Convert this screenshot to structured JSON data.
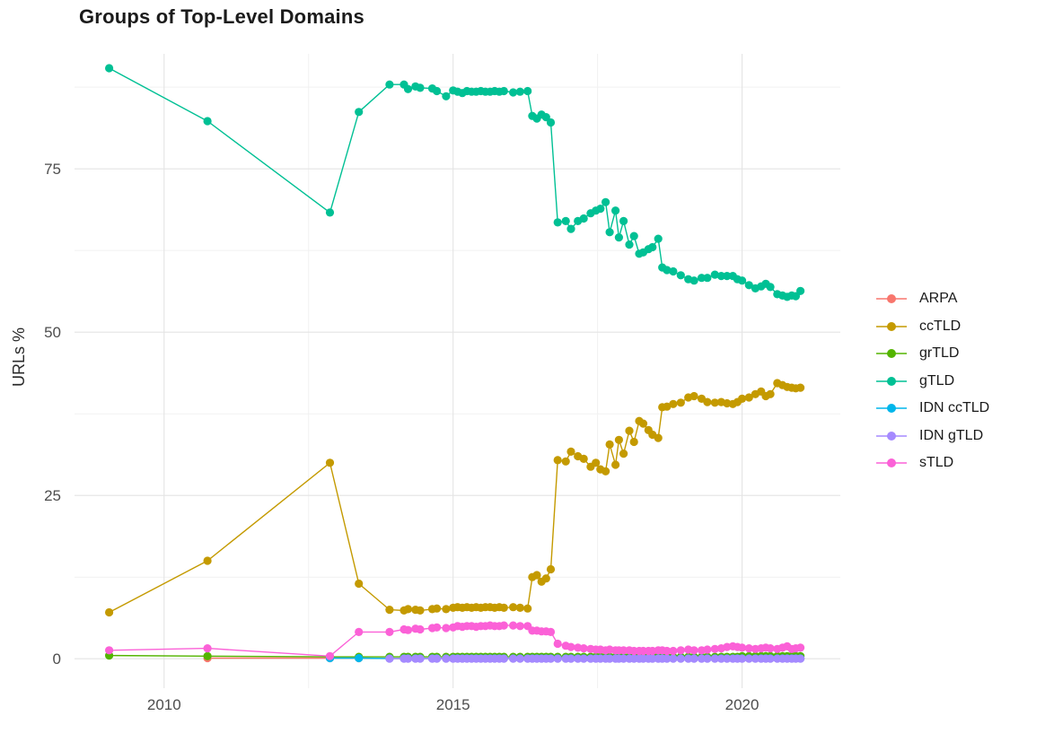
{
  "title": "Groups of Top-Level Domains",
  "y_axis": {
    "title": "URLs %"
  },
  "x_axis": {
    "tick_labels": [
      "2010",
      "2015",
      "2020"
    ]
  },
  "legend": {
    "position": "right",
    "entries": [
      {
        "label": "ARPA",
        "color": "#F8766D"
      },
      {
        "label": "ccTLD",
        "color": "#C49A00"
      },
      {
        "label": "grTLD",
        "color": "#53B400"
      },
      {
        "label": "gTLD",
        "color": "#00C094"
      },
      {
        "label": "IDN ccTLD",
        "color": "#00B6EB"
      },
      {
        "label": "IDN gTLD",
        "color": "#A58AFF"
      },
      {
        "label": "sTLD",
        "color": "#FB61D7"
      }
    ]
  },
  "chart_data": {
    "type": "line",
    "title": "Groups of Top-Level Domains",
    "xlabel": "",
    "ylabel": "URLs %",
    "x_domain": [
      2008.45,
      2021.7
    ],
    "y_domain": [
      -4.5,
      92.6
    ],
    "x_ticks": [
      2010,
      2015,
      2020
    ],
    "x_minor": [
      2012.5,
      2017.5
    ],
    "y_ticks": [
      0,
      25,
      50,
      75
    ],
    "y_minor": [
      12.5,
      37.5,
      62.5,
      87.5
    ],
    "grid": true,
    "legend_position": "right",
    "x": [
      2009.05,
      2010.75,
      2012.87,
      2013.37,
      2013.9,
      2014.15,
      2014.22,
      2014.35,
      2014.43,
      2014.64,
      2014.72,
      2014.88,
      2015.0,
      2015.08,
      2015.16,
      2015.24,
      2015.32,
      2015.4,
      2015.48,
      2015.56,
      2015.64,
      2015.72,
      2015.8,
      2015.88,
      2016.04,
      2016.16,
      2016.29,
      2016.37,
      2016.45,
      2016.53,
      2016.61,
      2016.69,
      2016.81,
      2016.95,
      2017.04,
      2017.16,
      2017.26,
      2017.38,
      2017.47,
      2017.55,
      2017.64,
      2017.71,
      2017.81,
      2017.87,
      2017.95,
      2018.05,
      2018.13,
      2018.22,
      2018.29,
      2018.38,
      2018.45,
      2018.55,
      2018.62,
      2018.7,
      2018.81,
      2018.94,
      2019.07,
      2019.17,
      2019.3,
      2019.4,
      2019.53,
      2019.64,
      2019.74,
      2019.84,
      2019.92,
      2020.0,
      2020.12,
      2020.23,
      2020.33,
      2020.41,
      2020.49,
      2020.61,
      2020.7,
      2020.78,
      2020.86,
      2020.93,
      2021.01
    ],
    "series": [
      {
        "name": "ARPA",
        "color": "#F8766D",
        "values": [
          null,
          0.1,
          0.1,
          0.1,
          0.05,
          0.05,
          0.05,
          0.05,
          0.05,
          0.05,
          0.05,
          0.05,
          0.05,
          0.05,
          0.05,
          0.05,
          0.05,
          0.05,
          0.05,
          0.05,
          0.05,
          0.05,
          0.05,
          0.05,
          0.05,
          0.05,
          0.05,
          0.05,
          0.05,
          0.05,
          0.05,
          0.05,
          0.05,
          0.05,
          0.05,
          0.05,
          0.05,
          0.05,
          0.05,
          0.05,
          0.05,
          0.05,
          0.05,
          0.05,
          0.05,
          0.05,
          0.05,
          0.05,
          0.05,
          0.05,
          0.05,
          0.05,
          0.05,
          0.05,
          0.05,
          0.05,
          0.05,
          0.05,
          0.05,
          0.05,
          0.05,
          0.05,
          0.05,
          0.05,
          0.05,
          0.05,
          0.05,
          0.05,
          0.05,
          0.05,
          0.05,
          0.05,
          0.05,
          0.05,
          0.05,
          0.05,
          0.05
        ]
      },
      {
        "name": "ccTLD",
        "color": "#C49A00",
        "values": [
          7.1,
          15.0,
          30.0,
          11.5,
          7.5,
          7.4,
          7.6,
          7.5,
          7.4,
          7.6,
          7.7,
          7.6,
          7.8,
          7.9,
          7.8,
          7.9,
          7.8,
          7.9,
          7.8,
          7.9,
          7.9,
          7.8,
          7.9,
          7.8,
          7.9,
          7.8,
          7.7,
          12.5,
          12.8,
          11.8,
          12.3,
          13.7,
          30.4,
          30.2,
          31.7,
          31.0,
          30.6,
          29.4,
          30.0,
          29.0,
          28.7,
          32.8,
          29.7,
          33.5,
          31.4,
          34.9,
          33.2,
          36.4,
          36.0,
          35.0,
          34.3,
          33.8,
          38.5,
          38.6,
          39.0,
          39.2,
          40.0,
          40.2,
          39.8,
          39.3,
          39.2,
          39.3,
          39.1,
          39.0,
          39.3,
          39.8,
          40.0,
          40.5,
          40.9,
          40.2,
          40.5,
          42.2,
          41.9,
          41.6,
          41.5,
          41.4,
          41.5
        ]
      },
      {
        "name": "grTLD",
        "color": "#53B400",
        "values": [
          0.5,
          0.4,
          0.3,
          0.3,
          0.3,
          0.3,
          0.3,
          0.3,
          0.3,
          0.3,
          0.3,
          0.3,
          0.3,
          0.3,
          0.3,
          0.3,
          0.3,
          0.3,
          0.3,
          0.3,
          0.3,
          0.3,
          0.3,
          0.3,
          0.3,
          0.3,
          0.3,
          0.3,
          0.3,
          0.3,
          0.3,
          0.3,
          0.3,
          0.3,
          0.3,
          0.3,
          0.3,
          0.3,
          0.3,
          0.3,
          0.3,
          0.3,
          0.3,
          0.3,
          0.3,
          0.3,
          0.3,
          0.3,
          0.3,
          0.3,
          0.3,
          0.3,
          0.3,
          0.3,
          0.3,
          0.3,
          0.3,
          0.3,
          0.3,
          0.3,
          0.3,
          0.3,
          0.3,
          0.3,
          0.3,
          0.4,
          0.4,
          0.4,
          0.4,
          0.4,
          0.4,
          0.4,
          0.4,
          0.4,
          0.4,
          0.4,
          0.4
        ]
      },
      {
        "name": "gTLD",
        "color": "#00C094",
        "values": [
          90.4,
          82.3,
          68.3,
          83.7,
          87.9,
          87.9,
          87.2,
          87.6,
          87.4,
          87.3,
          86.9,
          86.1,
          87.0,
          86.8,
          86.6,
          86.9,
          86.8,
          86.8,
          86.9,
          86.8,
          86.8,
          86.9,
          86.8,
          86.9,
          86.7,
          86.8,
          86.9,
          83.1,
          82.7,
          83.3,
          82.9,
          82.1,
          66.8,
          67.0,
          65.8,
          67.0,
          67.4,
          68.2,
          68.6,
          68.9,
          69.9,
          65.3,
          68.6,
          64.5,
          67.0,
          63.4,
          64.7,
          62.0,
          62.2,
          62.7,
          63.0,
          64.3,
          59.9,
          59.5,
          59.3,
          58.7,
          58.1,
          57.9,
          58.3,
          58.3,
          58.8,
          58.6,
          58.6,
          58.6,
          58.1,
          57.9,
          57.2,
          56.7,
          57.0,
          57.4,
          56.9,
          55.8,
          55.6,
          55.4,
          55.6,
          55.5,
          56.3
        ]
      },
      {
        "name": "IDN ccTLD",
        "color": "#00B6EB",
        "values": [
          null,
          null,
          0.1,
          0.1,
          0.05,
          0.05,
          0.05,
          0.05,
          0.05,
          0.05,
          0.05,
          0.05,
          0.05,
          0.05,
          0.05,
          0.05,
          0.05,
          0.05,
          0.05,
          0.05,
          0.05,
          0.05,
          0.05,
          0.05,
          0.05,
          0.05,
          0.05,
          0.05,
          0.05,
          0.05,
          0.05,
          0.05,
          0.05,
          0.05,
          0.05,
          0.05,
          0.05,
          0.05,
          0.05,
          0.05,
          0.05,
          0.05,
          0.05,
          0.05,
          0.05,
          0.05,
          0.05,
          0.05,
          0.05,
          0.05,
          0.05,
          0.05,
          0.05,
          0.05,
          0.05,
          0.05,
          0.05,
          0.05,
          0.05,
          0.05,
          0.05,
          0.05,
          0.05,
          0.05,
          0.05,
          0.05,
          0.05,
          0.05,
          0.05,
          0.05,
          0.05,
          0.05,
          0.05,
          0.05,
          0.05,
          0.05,
          0.05
        ]
      },
      {
        "name": "IDN gTLD",
        "color": "#A58AFF",
        "values": [
          null,
          null,
          null,
          null,
          0.02,
          0.02,
          0.02,
          0.02,
          0.02,
          0.02,
          0.02,
          0.02,
          0.02,
          0.02,
          0.02,
          0.02,
          0.02,
          0.02,
          0.02,
          0.02,
          0.02,
          0.02,
          0.02,
          0.02,
          0.02,
          0.02,
          0.02,
          0.02,
          0.02,
          0.02,
          0.02,
          0.02,
          0.02,
          0.02,
          0.02,
          0.02,
          0.02,
          0.02,
          0.02,
          0.02,
          0.02,
          0.02,
          0.02,
          0.02,
          0.02,
          0.02,
          0.02,
          0.02,
          0.02,
          0.02,
          0.02,
          0.02,
          0.02,
          0.02,
          0.02,
          0.02,
          0.02,
          0.02,
          0.02,
          0.02,
          0.02,
          0.02,
          0.02,
          0.02,
          0.02,
          0.02,
          0.02,
          0.02,
          0.02,
          0.02,
          0.02,
          0.02,
          0.02,
          0.02,
          0.02,
          0.02,
          0.02
        ]
      },
      {
        "name": "sTLD",
        "color": "#FB61D7",
        "values": [
          1.3,
          1.6,
          0.4,
          4.1,
          4.1,
          4.5,
          4.4,
          4.6,
          4.5,
          4.7,
          4.8,
          4.7,
          4.8,
          5.0,
          4.9,
          5.0,
          5.0,
          4.9,
          5.0,
          5.0,
          5.1,
          5.0,
          5.0,
          5.1,
          5.1,
          5.0,
          5.0,
          4.3,
          4.3,
          4.2,
          4.2,
          4.1,
          2.3,
          2.0,
          1.8,
          1.7,
          1.6,
          1.5,
          1.4,
          1.4,
          1.3,
          1.4,
          1.3,
          1.3,
          1.3,
          1.3,
          1.2,
          1.2,
          1.2,
          1.2,
          1.2,
          1.3,
          1.3,
          1.2,
          1.2,
          1.3,
          1.4,
          1.3,
          1.3,
          1.4,
          1.5,
          1.6,
          1.8,
          1.9,
          1.8,
          1.7,
          1.6,
          1.5,
          1.6,
          1.7,
          1.6,
          1.5,
          1.7,
          1.9,
          1.5,
          1.6,
          1.7
        ]
      }
    ]
  }
}
